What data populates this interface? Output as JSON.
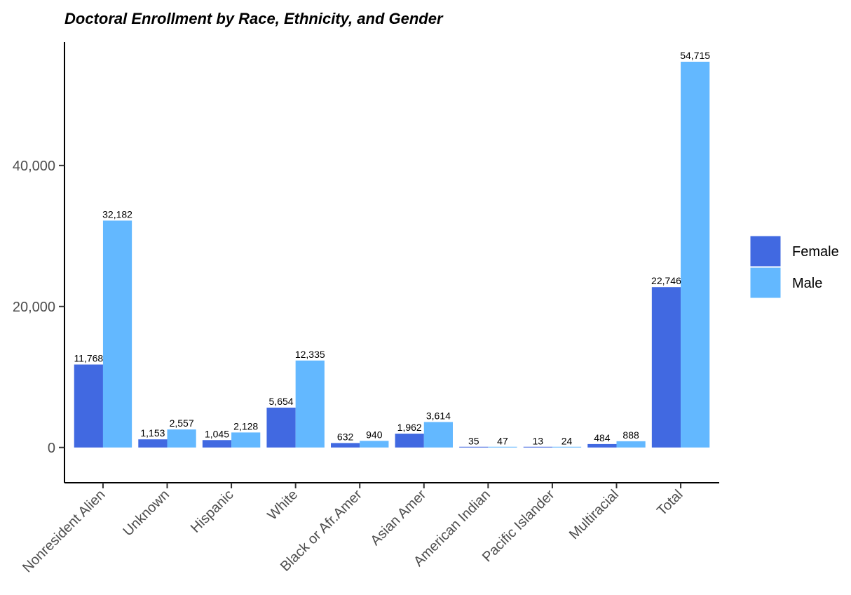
{
  "chart_data": {
    "type": "bar",
    "title": "Doctoral Enrollment by Race, Ethnicity, and Gender",
    "xlabel": "",
    "ylabel": "",
    "categories": [
      "Nonresident Alien",
      "Unknown",
      "Hispanic",
      "White",
      "Black or Afr.Amer",
      "Asian Amer",
      "American Indian",
      "Pacific Islander",
      "Multiracial",
      "Total"
    ],
    "series": [
      {
        "name": "Female",
        "color": "#4169E1",
        "values": [
          11768,
          1153,
          1045,
          5654,
          632,
          1962,
          35,
          13,
          484,
          22746
        ]
      },
      {
        "name": "Male",
        "color": "#63B8FF",
        "values": [
          32182,
          2557,
          2128,
          12335,
          940,
          3614,
          47,
          24,
          888,
          54715
        ]
      }
    ],
    "data_labels": {
      "Female": [
        "11,768",
        "1,153",
        "1,045",
        "5,654",
        "632",
        "1,962",
        "35",
        "13",
        "484",
        "22,746"
      ],
      "Male": [
        "32,182",
        "2,557",
        "2,128",
        "12,335",
        "940",
        "3,614",
        "47",
        "24",
        "888",
        "54,715"
      ]
    },
    "ylim": [
      -5000,
      57500
    ],
    "yticks": [
      0,
      20000,
      40000
    ],
    "ytick_labels": [
      "0",
      "20,000",
      "40,000"
    ],
    "grid": false,
    "legend_position": "right"
  }
}
